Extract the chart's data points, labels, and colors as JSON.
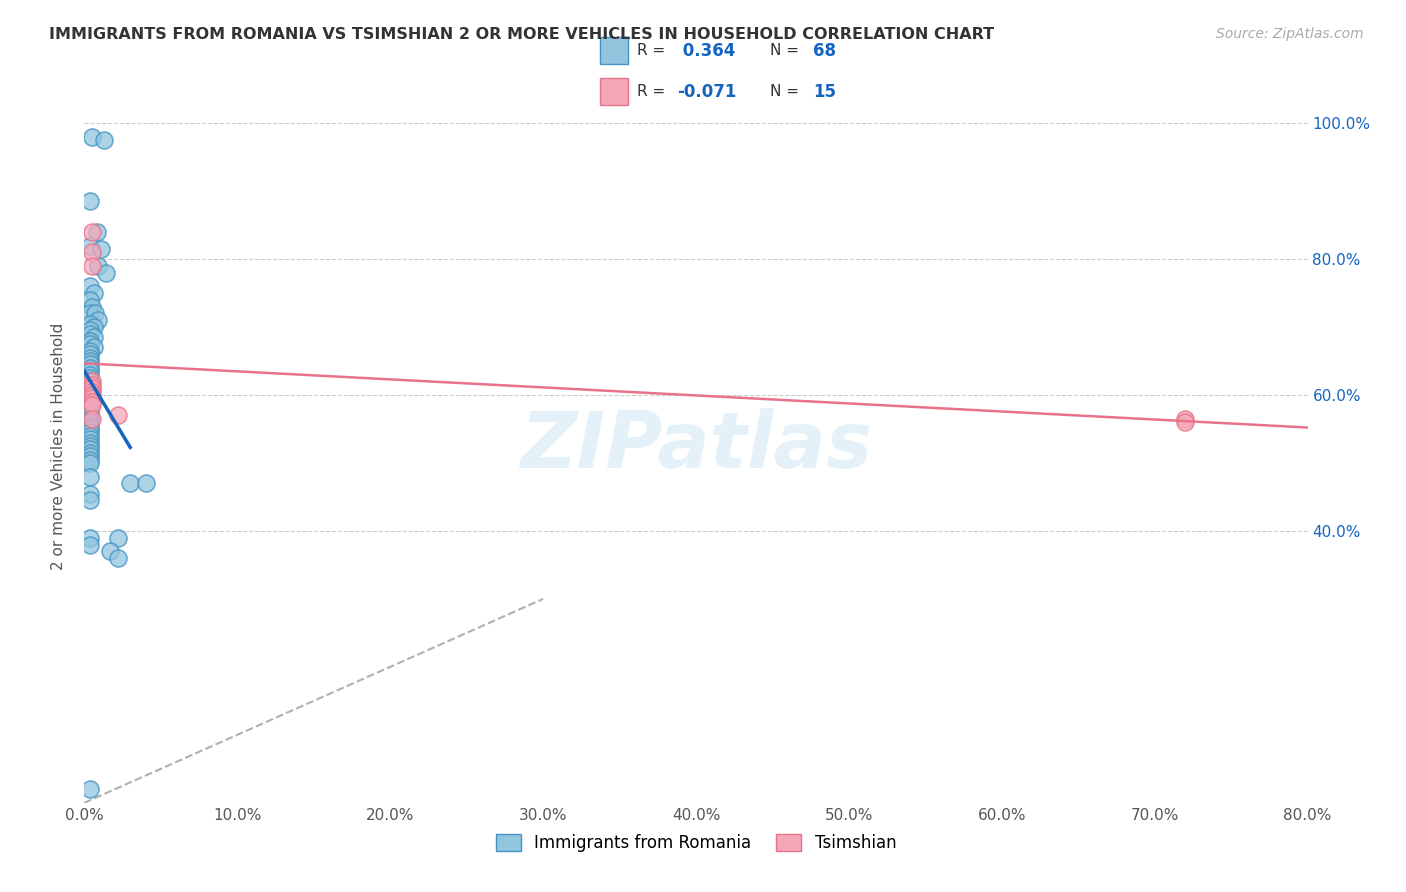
{
  "title": "IMMIGRANTS FROM ROMANIA VS TSIMSHIAN 2 OR MORE VEHICLES IN HOUSEHOLD CORRELATION CHART",
  "source": "Source: ZipAtlas.com",
  "ylabel": "2 or more Vehicles in Household",
  "xlim": [
    0.0,
    0.8
  ],
  "ylim": [
    0.0,
    1.05
  ],
  "xtick_labels": [
    "0.0%",
    "",
    "10.0%",
    "",
    "20.0%",
    "",
    "30.0%",
    "",
    "40.0%",
    "",
    "50.0%",
    "",
    "60.0%",
    "",
    "70.0%",
    "",
    "80.0%"
  ],
  "xtick_vals": [
    0.0,
    0.05,
    0.1,
    0.15,
    0.2,
    0.25,
    0.3,
    0.35,
    0.4,
    0.45,
    0.5,
    0.55,
    0.6,
    0.65,
    0.7,
    0.75,
    0.8
  ],
  "ytick_labels": [
    "40.0%",
    "60.0%",
    "80.0%",
    "100.0%"
  ],
  "ytick_vals": [
    0.4,
    0.6,
    0.8,
    1.0
  ],
  "romania_color": "#92c5de",
  "romania_edge": "#4393c3",
  "tsimshian_color": "#f4a7b9",
  "tsimshian_edge": "#e8728a",
  "trend_romania_color": "#1565c0",
  "trend_tsimshian_color": "#e8728a",
  "diagonal_color": "#b0b0b0",
  "R_romania": 0.364,
  "N_romania": 68,
  "R_tsimshian": -0.071,
  "N_tsimshian": 15,
  "legend_label_1": "Immigrants from Romania",
  "legend_label_2": "Tsimshian",
  "watermark": "ZIPatlas",
  "romania_x": [
    0.005,
    0.013,
    0.004,
    0.008,
    0.004,
    0.011,
    0.009,
    0.014,
    0.004,
    0.006,
    0.004,
    0.005,
    0.004,
    0.007,
    0.009,
    0.004,
    0.006,
    0.004,
    0.004,
    0.006,
    0.004,
    0.004,
    0.006,
    0.004,
    0.004,
    0.004,
    0.004,
    0.004,
    0.004,
    0.004,
    0.004,
    0.004,
    0.004,
    0.004,
    0.004,
    0.004,
    0.004,
    0.004,
    0.004,
    0.004,
    0.004,
    0.004,
    0.004,
    0.004,
    0.004,
    0.004,
    0.004,
    0.004,
    0.004,
    0.004,
    0.004,
    0.004,
    0.004,
    0.004,
    0.004,
    0.004,
    0.004,
    0.004,
    0.03,
    0.04,
    0.004,
    0.004,
    0.022,
    0.017,
    0.022,
    0.004,
    0.004,
    0.004
  ],
  "romania_y": [
    0.98,
    0.975,
    0.885,
    0.84,
    0.82,
    0.815,
    0.79,
    0.78,
    0.76,
    0.75,
    0.74,
    0.73,
    0.72,
    0.72,
    0.71,
    0.705,
    0.7,
    0.695,
    0.69,
    0.685,
    0.68,
    0.675,
    0.67,
    0.665,
    0.66,
    0.655,
    0.65,
    0.645,
    0.64,
    0.635,
    0.63,
    0.625,
    0.62,
    0.615,
    0.61,
    0.605,
    0.6,
    0.595,
    0.59,
    0.585,
    0.58,
    0.575,
    0.57,
    0.565,
    0.56,
    0.555,
    0.55,
    0.545,
    0.54,
    0.535,
    0.53,
    0.525,
    0.52,
    0.515,
    0.51,
    0.505,
    0.5,
    0.48,
    0.47,
    0.47,
    0.455,
    0.445,
    0.39,
    0.37,
    0.36,
    0.02,
    0.39,
    0.38
  ],
  "tsimshian_x": [
    0.005,
    0.005,
    0.005,
    0.005,
    0.005,
    0.005,
    0.005,
    0.005,
    0.005,
    0.005,
    0.005,
    0.005,
    0.022,
    0.72,
    0.72
  ],
  "tsimshian_y": [
    0.84,
    0.81,
    0.79,
    0.62,
    0.615,
    0.61,
    0.605,
    0.6,
    0.595,
    0.59,
    0.585,
    0.565,
    0.57,
    0.565,
    0.56
  ]
}
